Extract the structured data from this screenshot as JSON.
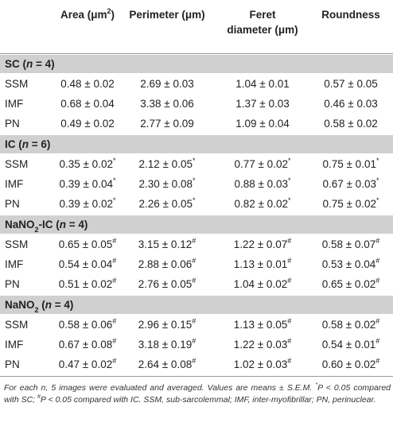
{
  "header": {
    "area": "Area (μm",
    "area_sup": "2",
    "area_close": ")",
    "perimeter": "Perimeter (μm)",
    "feret_line1": "Feret",
    "feret_line2": "diameter (μm)",
    "roundness": "Roundness"
  },
  "groups": [
    {
      "label_pre": "SC (",
      "label_n": "n",
      "label_post": " = 4)",
      "rows": [
        {
          "label": "SSM",
          "area": "0.48 ± 0.02",
          "area_sup": "",
          "perimeter": "2.69 ± 0.03",
          "perimeter_sup": "",
          "feret": "1.04 ± 0.01",
          "feret_sup": "",
          "roundness": "0.57 ± 0.05",
          "roundness_sup": ""
        },
        {
          "label": "IMF",
          "area": "0.68 ± 0.04",
          "area_sup": "",
          "perimeter": "3.38 ± 0.06",
          "perimeter_sup": "",
          "feret": "1.37 ± 0.03",
          "feret_sup": "",
          "roundness": "0.46 ± 0.03",
          "roundness_sup": ""
        },
        {
          "label": "PN",
          "area": "0.49 ± 0.02",
          "area_sup": "",
          "perimeter": "2.77 ± 0.09",
          "perimeter_sup": "",
          "feret": "1.09 ± 0.04",
          "feret_sup": "",
          "roundness": "0.58 ± 0.02",
          "roundness_sup": ""
        }
      ]
    },
    {
      "label_pre": "IC (",
      "label_n": "n",
      "label_post": " = 6)",
      "rows": [
        {
          "label": "SSM",
          "area": "0.35 ± 0.02",
          "area_sup": "*",
          "perimeter": "2.12 ± 0.05",
          "perimeter_sup": "*",
          "feret": "0.77 ± 0.02",
          "feret_sup": "*",
          "roundness": "0.75 ± 0.01",
          "roundness_sup": "*"
        },
        {
          "label": "IMF",
          "area": "0.39 ± 0.04",
          "area_sup": "*",
          "perimeter": "2.30 ± 0.08",
          "perimeter_sup": "*",
          "feret": "0.88 ± 0.03",
          "feret_sup": "*",
          "roundness": "0.67 ± 0.03",
          "roundness_sup": "*"
        },
        {
          "label": "PN",
          "area": "0.39 ± 0.02",
          "area_sup": "*",
          "perimeter": "2.26 ± 0.05",
          "perimeter_sup": "*",
          "feret": "0.82 ± 0.02",
          "feret_sup": "*",
          "roundness": "0.75 ± 0.02",
          "roundness_sup": "*"
        }
      ]
    },
    {
      "label_pre": "NaNO",
      "label_sub": "2",
      "label_mid": "-IC (",
      "label_n": "n",
      "label_post": " = 4)",
      "rows": [
        {
          "label": "SSM",
          "area": "0.65 ± 0.05",
          "area_sup": "#",
          "perimeter": "3.15 ± 0.12",
          "perimeter_sup": "#",
          "feret": "1.22 ± 0.07",
          "feret_sup": "#",
          "roundness": "0.58 ± 0.07",
          "roundness_sup": "#"
        },
        {
          "label": "IMF",
          "area": "0.54 ± 0.04",
          "area_sup": "#",
          "perimeter": "2.88 ± 0.06",
          "perimeter_sup": "#",
          "feret": "1.13 ± 0.01",
          "feret_sup": "#",
          "roundness": "0.53 ± 0.04",
          "roundness_sup": "#"
        },
        {
          "label": "PN",
          "area": "0.51 ± 0.02",
          "area_sup": "#",
          "perimeter": "2.76 ± 0.05",
          "perimeter_sup": "#",
          "feret": "1.04 ± 0.02",
          "feret_sup": "#",
          "roundness": "0.65 ± 0.02",
          "roundness_sup": "#"
        }
      ]
    },
    {
      "label_pre": "NaNO",
      "label_sub": "2",
      "label_mid": " (",
      "label_n": "n",
      "label_post": " = 4)",
      "rows": [
        {
          "label": "SSM",
          "area": "0.58 ± 0.06",
          "area_sup": "#",
          "perimeter": "2.96 ± 0.15",
          "perimeter_sup": "#",
          "feret": "1.13 ± 0.05",
          "feret_sup": "#",
          "roundness": "0.58 ± 0.02",
          "roundness_sup": "#"
        },
        {
          "label": "IMF",
          "area": "0.67 ± 0.08",
          "area_sup": "#",
          "perimeter": "3.18 ± 0.19",
          "perimeter_sup": "#",
          "feret": "1.22 ± 0.03",
          "feret_sup": "#",
          "roundness": "0.54 ± 0.01",
          "roundness_sup": "#"
        },
        {
          "label": "PN",
          "area": "0.47 ± 0.02",
          "area_sup": "#",
          "perimeter": "2.64 ± 0.08",
          "perimeter_sup": "#",
          "feret": "1.02 ± 0.03",
          "feret_sup": "#",
          "roundness": "0.60 ± 0.02",
          "roundness_sup": "#"
        }
      ]
    }
  ],
  "footnote": {
    "part1": "For each n, 5 images were evaluated and averaged. Values are means ± S.E.M.",
    "part2": "P < 0.05 compared with SC;",
    "sup2": "#",
    "part3": "P < 0.05 compared with IC. SSM, sub-sarcolemmal; IMF, inter-myofibrillar; PN, perinuclear.",
    "sup1": "*"
  },
  "colors": {
    "group_band": "#d0d0d0",
    "rule": "#9a9a9a",
    "text": "#222222"
  }
}
